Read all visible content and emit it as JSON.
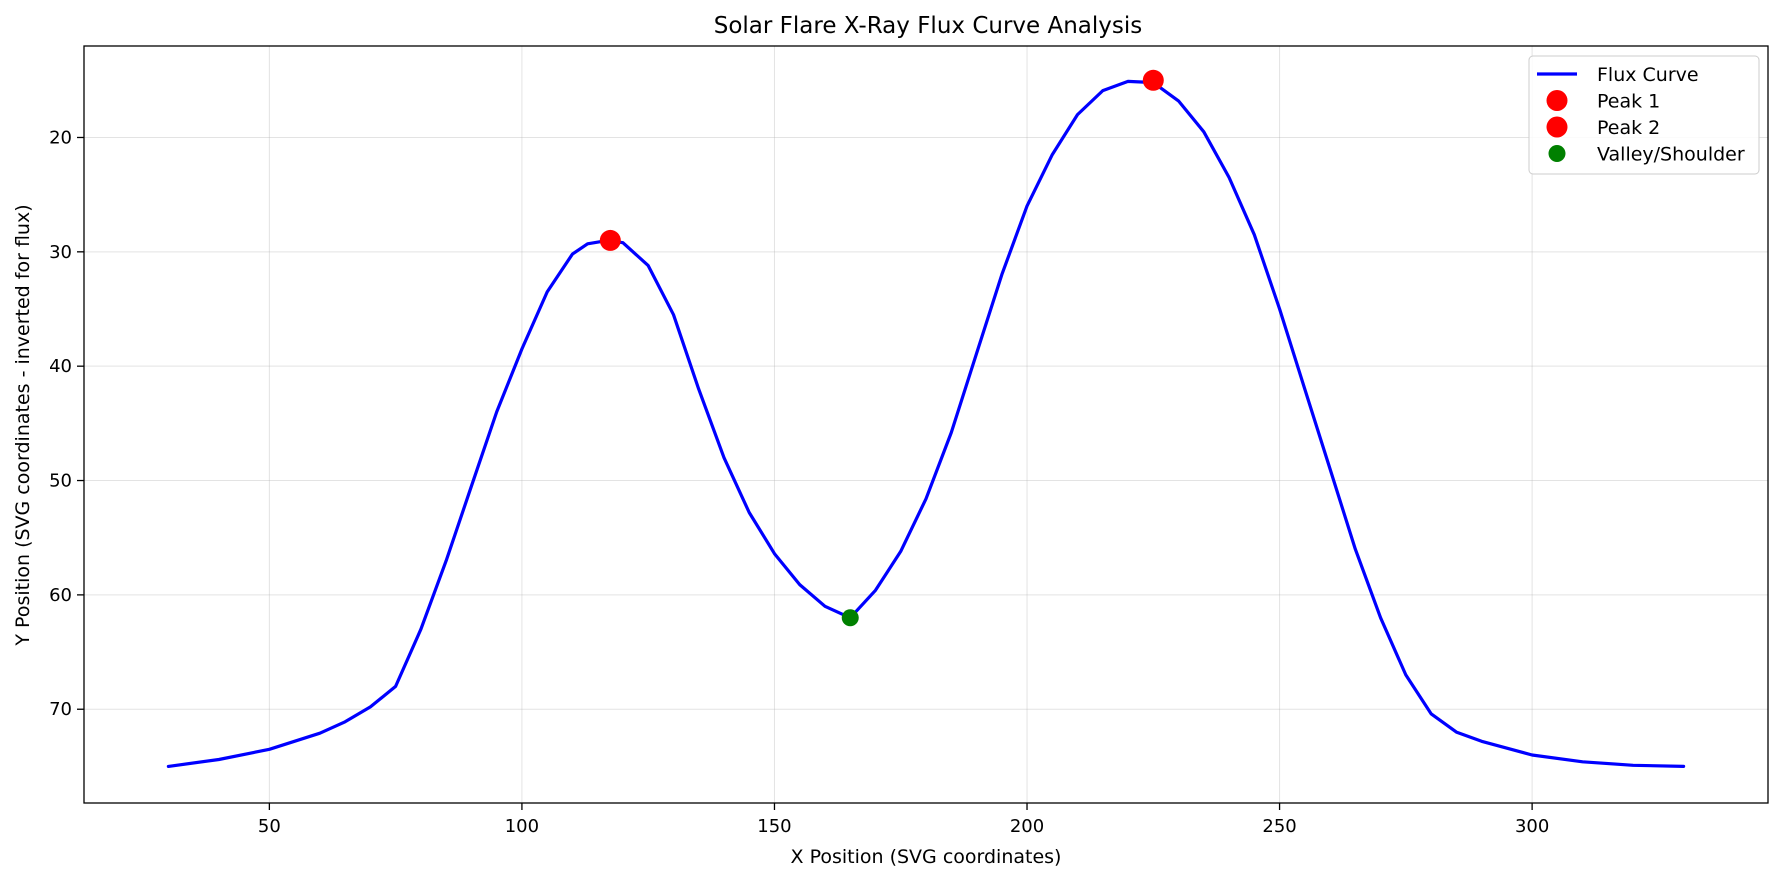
{
  "chart_data": {
    "type": "line",
    "title": "Solar Flare X-Ray Flux Curve Analysis",
    "xlabel": "X Position (SVG coordinates)",
    "ylabel": "Y Position (SVG coordinates - inverted for flux)",
    "xlim": [
      13.3,
      346.7
    ],
    "ylim": [
      78.2,
      12.0
    ],
    "y_inverted": true,
    "grid": true,
    "legend_position": "top-right",
    "x_ticks": [
      50,
      100,
      150,
      200,
      250,
      300
    ],
    "y_ticks": [
      20,
      30,
      40,
      50,
      60,
      70
    ],
    "series": [
      {
        "name": "Flux Curve",
        "kind": "line",
        "color": "#0000ff",
        "x": [
          30,
          40,
          50,
          60,
          65,
          70,
          75,
          80,
          85,
          90,
          95,
          100,
          105,
          110,
          113,
          117,
          120,
          125,
          130,
          135,
          140,
          145,
          150,
          155,
          160,
          165,
          170,
          175,
          180,
          185,
          190,
          195,
          200,
          205,
          210,
          215,
          220,
          225,
          230,
          235,
          240,
          245,
          250,
          255,
          260,
          265,
          270,
          275,
          280,
          285,
          290,
          300,
          310,
          320,
          330
        ],
        "y": [
          75,
          74.4,
          73.5,
          72.1,
          71.1,
          69.8,
          68.0,
          63.0,
          57.0,
          50.5,
          44.0,
          38.5,
          33.5,
          30.2,
          29.3,
          29.0,
          29.2,
          31.2,
          35.5,
          42.0,
          48.0,
          52.8,
          56.4,
          59.1,
          61.0,
          62.0,
          59.6,
          56.2,
          51.6,
          45.8,
          38.9,
          32.0,
          26.0,
          21.5,
          18.0,
          15.9,
          15.1,
          15.2,
          16.8,
          19.5,
          23.5,
          28.5,
          35.0,
          42.0,
          49.0,
          56.0,
          62.0,
          67.0,
          70.4,
          72.0,
          72.8,
          74.0,
          74.6,
          74.9,
          75.0
        ]
      },
      {
        "name": "Peak 1",
        "kind": "marker",
        "color": "#ff0000",
        "x": [
          117.5
        ],
        "y": [
          29.0
        ]
      },
      {
        "name": "Peak 2",
        "kind": "marker",
        "color": "#ff0000",
        "x": [
          225
        ],
        "y": [
          15.0
        ]
      },
      {
        "name": "Valley/Shoulder",
        "kind": "marker",
        "color": "#008000",
        "x": [
          165
        ],
        "y": [
          62.0
        ]
      }
    ]
  }
}
